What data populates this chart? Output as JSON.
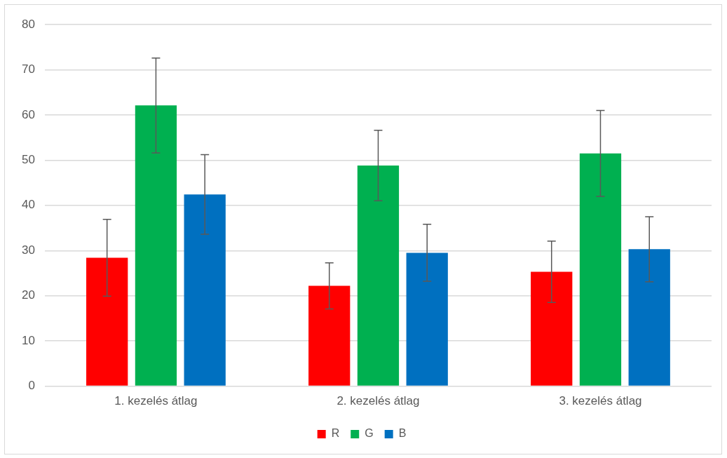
{
  "chart_data": {
    "type": "bar",
    "categories": [
      "1. kezelés átlag",
      "2. kezelés átlag",
      "3. kezelés átlag"
    ],
    "series": [
      {
        "name": "R",
        "color": "#ff0000",
        "values": [
          28.4,
          22.2,
          25.3
        ],
        "errors": [
          8.5,
          5.1,
          6.8
        ]
      },
      {
        "name": "G",
        "color": "#00b050",
        "values": [
          62.1,
          48.8,
          51.5
        ],
        "errors": [
          10.5,
          7.8,
          9.5
        ]
      },
      {
        "name": "B",
        "color": "#0070c0",
        "values": [
          42.4,
          29.5,
          30.3
        ],
        "errors": [
          8.8,
          6.3,
          7.2
        ]
      }
    ],
    "ylim": [
      0,
      80
    ],
    "yticks": [
      0,
      10,
      20,
      30,
      40,
      50,
      60,
      70,
      80
    ],
    "grid": "y",
    "legend": "bottom"
  }
}
